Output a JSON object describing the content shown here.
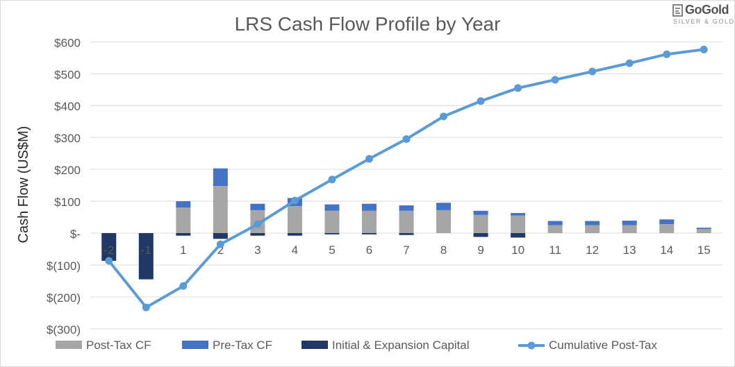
{
  "logo": {
    "name": "GoGold",
    "tagline": "SILVER & GOLD"
  },
  "colors": {
    "post_tax": "#a6a6a6",
    "pre_tax": "#4472c4",
    "capital": "#203864",
    "cumulative": "#5b9bd5"
  },
  "chart_data": {
    "type": "bar",
    "title": "LRS Cash Flow Profile by Year",
    "ylabel": "Cash Flow (US$M)",
    "xlabel": "",
    "ylim": [
      -300,
      600
    ],
    "yticks": [
      600,
      500,
      400,
      300,
      200,
      100,
      0,
      -100,
      -200,
      -300
    ],
    "ytick_labels": [
      "$600",
      "$500",
      "$400",
      "$300",
      "$200",
      "$100",
      "$-",
      "$(100)",
      "$(200)",
      "$(300)"
    ],
    "grid": true,
    "legend_position": "bottom",
    "categories": [
      "-2",
      "-1",
      "1",
      "2",
      "3",
      "4",
      "5",
      "6",
      "7",
      "8",
      "9",
      "10",
      "11",
      "12",
      "13",
      "14",
      "15"
    ],
    "series": [
      {
        "name": "Post-Tax CF",
        "kind": "stacked-bar",
        "values": [
          0,
          0,
          80,
          148,
          72,
          85,
          70,
          70,
          70,
          72,
          57,
          55,
          25,
          25,
          25,
          28,
          13
        ]
      },
      {
        "name": "Pre-Tax CF",
        "kind": "stacked-bar",
        "values": [
          0,
          0,
          20,
          55,
          20,
          25,
          20,
          22,
          17,
          23,
          13,
          8,
          13,
          13,
          14,
          15,
          4
        ]
      },
      {
        "name": "Initial & Expansion Capital",
        "kind": "bar",
        "values": [
          -87,
          -145,
          -8,
          -18,
          -8,
          -8,
          -4,
          -4,
          -6,
          0,
          -12,
          -14,
          0,
          0,
          0,
          0,
          0
        ]
      },
      {
        "name": "Cumulative Post-Tax",
        "kind": "line",
        "values": [
          -87,
          -233,
          -166,
          -35,
          28,
          102,
          168,
          233,
          295,
          366,
          414,
          455,
          481,
          507,
          533,
          561,
          576
        ]
      }
    ]
  }
}
